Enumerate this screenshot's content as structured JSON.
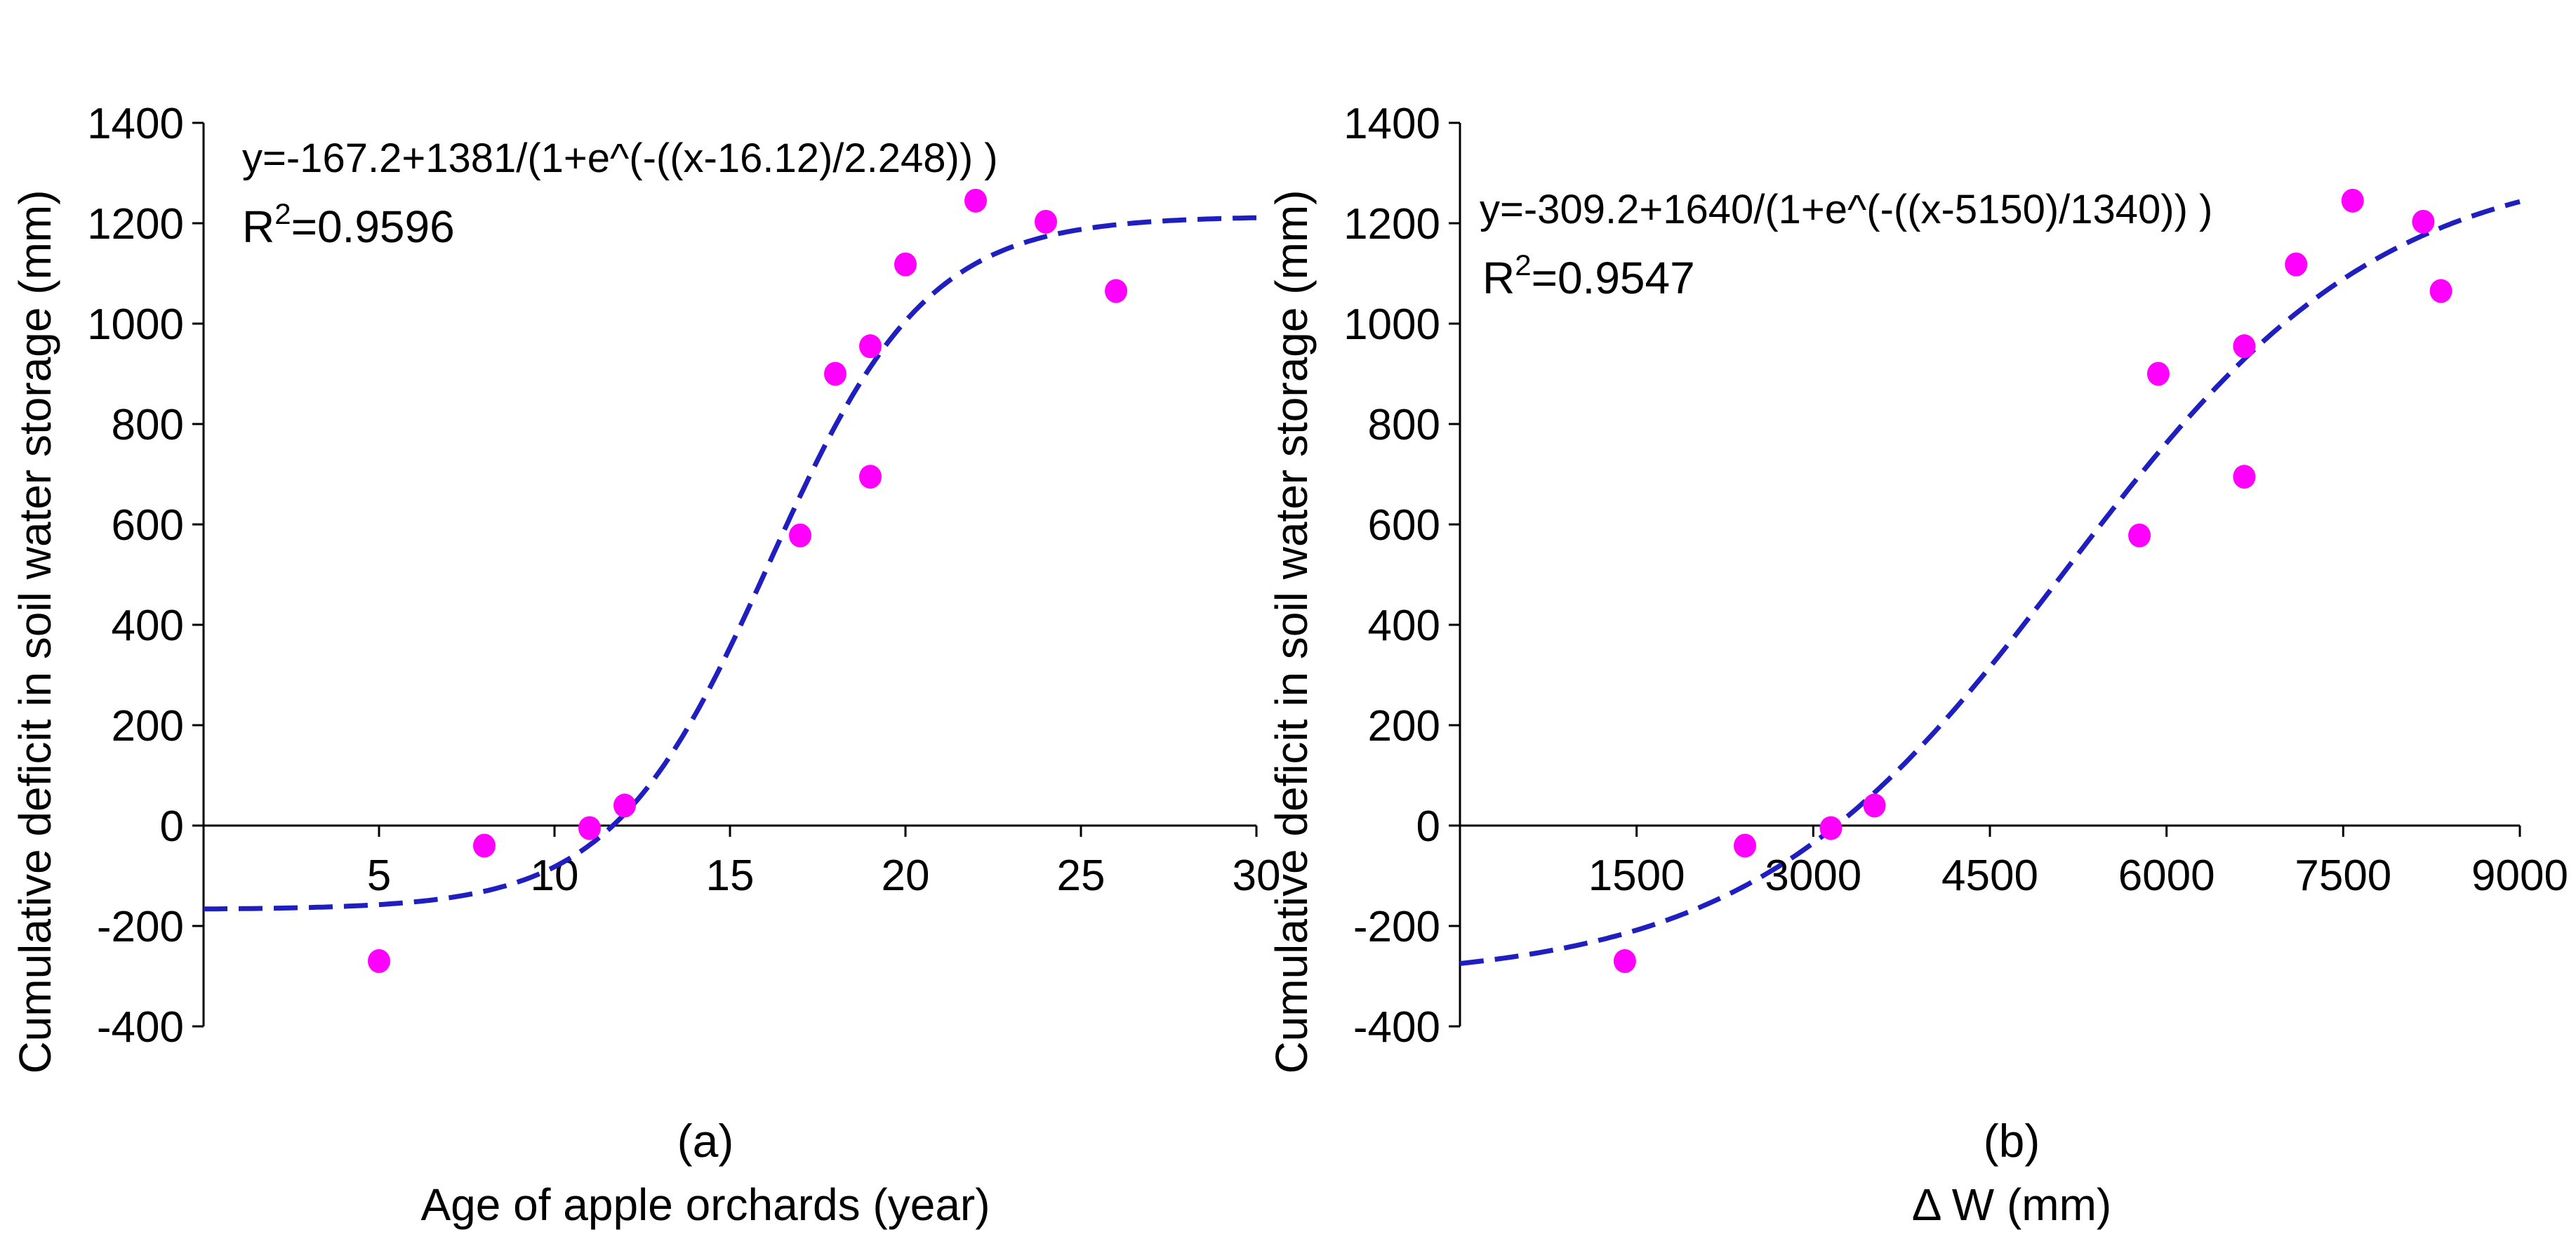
{
  "chart_data": [
    {
      "type": "scatter",
      "panel_label": "(a)",
      "xlabel": "Age of apple orchards (year)",
      "ylabel": "Cumulative deficit in soil water storage (mm)",
      "xlim": [
        0,
        30
      ],
      "ylim": [
        -400,
        1400
      ],
      "x_ticks": [
        5,
        10,
        15,
        20,
        25,
        30
      ],
      "x_tick_labels": [
        "5",
        "10",
        "15",
        "20",
        "25",
        "30"
      ],
      "y_ticks": [
        -400,
        -200,
        0,
        200,
        400,
        600,
        800,
        1000,
        1200,
        1400
      ],
      "y_tick_labels": [
        "-400",
        "-200",
        "0",
        "200",
        "400",
        "600",
        "800",
        "1000",
        "1200",
        "1400"
      ],
      "equation": "y=-167.2+1381/(1+e^(-((x-16.12)/2.248)) )",
      "r2_label": "R",
      "r2_sup": "2",
      "r2_value": "=0.9596",
      "fit": {
        "y0": -167.2,
        "A": 1381,
        "x0": 16.12,
        "s": 2.248
      },
      "points": [
        {
          "x": 5,
          "y": -270
        },
        {
          "x": 8,
          "y": -40
        },
        {
          "x": 11,
          "y": -5
        },
        {
          "x": 12,
          "y": 40
        },
        {
          "x": 17,
          "y": 578
        },
        {
          "x": 18,
          "y": 900
        },
        {
          "x": 19,
          "y": 955
        },
        {
          "x": 19,
          "y": 695
        },
        {
          "x": 20,
          "y": 1118
        },
        {
          "x": 22,
          "y": 1245
        },
        {
          "x": 24,
          "y": 1203
        },
        {
          "x": 26,
          "y": 1065
        }
      ],
      "point_color": "#ff00ff",
      "fit_color": "#1f1fbf"
    },
    {
      "type": "scatter",
      "panel_label": "(b)",
      "xlabel": "Δ W (mm)",
      "ylabel": "Cumulative deficit in soil water storage (mm)",
      "xlim": [
        0,
        9000
      ],
      "ylim": [
        -400,
        1400
      ],
      "x_ticks": [
        1500,
        3000,
        4500,
        6000,
        7500,
        9000
      ],
      "x_tick_labels": [
        "1500",
        "3000",
        "4500",
        "6000",
        "7500",
        "9000"
      ],
      "y_ticks": [
        -400,
        -200,
        0,
        200,
        400,
        600,
        800,
        1000,
        1200,
        1400
      ],
      "y_tick_labels": [
        "-400",
        "-200",
        "0",
        "200",
        "400",
        "600",
        "800",
        "1000",
        "1200",
        "1400"
      ],
      "equation": "y=-309.2+1640/(1+e^(-((x-5150)/1340)) )",
      "r2_label": "R",
      "r2_sup": "2",
      "r2_value": "=0.9547",
      "fit": {
        "y0": -309.2,
        "A": 1640,
        "x0": 5150,
        "s": 1340
      },
      "points": [
        {
          "x": 1400,
          "y": -270
        },
        {
          "x": 2420,
          "y": -40
        },
        {
          "x": 3150,
          "y": -5
        },
        {
          "x": 3520,
          "y": 40
        },
        {
          "x": 5770,
          "y": 578
        },
        {
          "x": 5930,
          "y": 900
        },
        {
          "x": 6660,
          "y": 955
        },
        {
          "x": 6660,
          "y": 695
        },
        {
          "x": 7100,
          "y": 1118
        },
        {
          "x": 7580,
          "y": 1245
        },
        {
          "x": 8180,
          "y": 1203
        },
        {
          "x": 8330,
          "y": 1065
        }
      ],
      "point_color": "#ff00ff",
      "fit_color": "#1f1fbf"
    }
  ]
}
